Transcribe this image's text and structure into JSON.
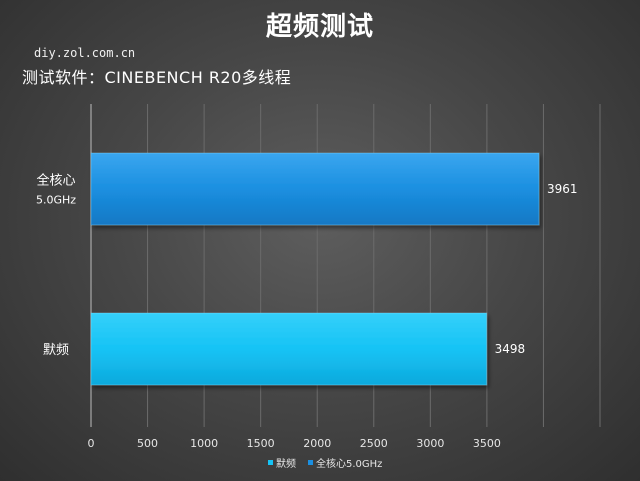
{
  "header": {
    "title": "超频测试",
    "watermark": "diy.zol.com.cn",
    "subtitle": "测试软件：CINEBENCH R20多线程"
  },
  "colors": {
    "series_default": "#16c3f5",
    "series_oc": "#1b8fe0",
    "grid": "#6b6b6b",
    "text": "#ffffff",
    "axis_text": "#e6e6e6"
  },
  "chart_data": {
    "type": "bar",
    "orientation": "horizontal",
    "categories": [
      {
        "lines": [
          "全核心",
          "5.0GHz"
        ]
      },
      {
        "lines": [
          "默频"
        ]
      }
    ],
    "series": [
      {
        "name": "默频",
        "values": [
          null,
          3498
        ],
        "color": "#16c3f5"
      },
      {
        "name": "全核心5.0GHz",
        "values": [
          3961,
          null
        ],
        "color": "#1b8fe0"
      }
    ],
    "data_labels": [
      "3961",
      "3498"
    ],
    "xlim": [
      0,
      4500
    ],
    "xticks": [
      0,
      500,
      1000,
      1500,
      2000,
      2500,
      3000,
      3500
    ],
    "grid": true,
    "legend": {
      "position": "bottom",
      "entries": [
        "默频",
        "全核心5.0GHz"
      ]
    }
  }
}
